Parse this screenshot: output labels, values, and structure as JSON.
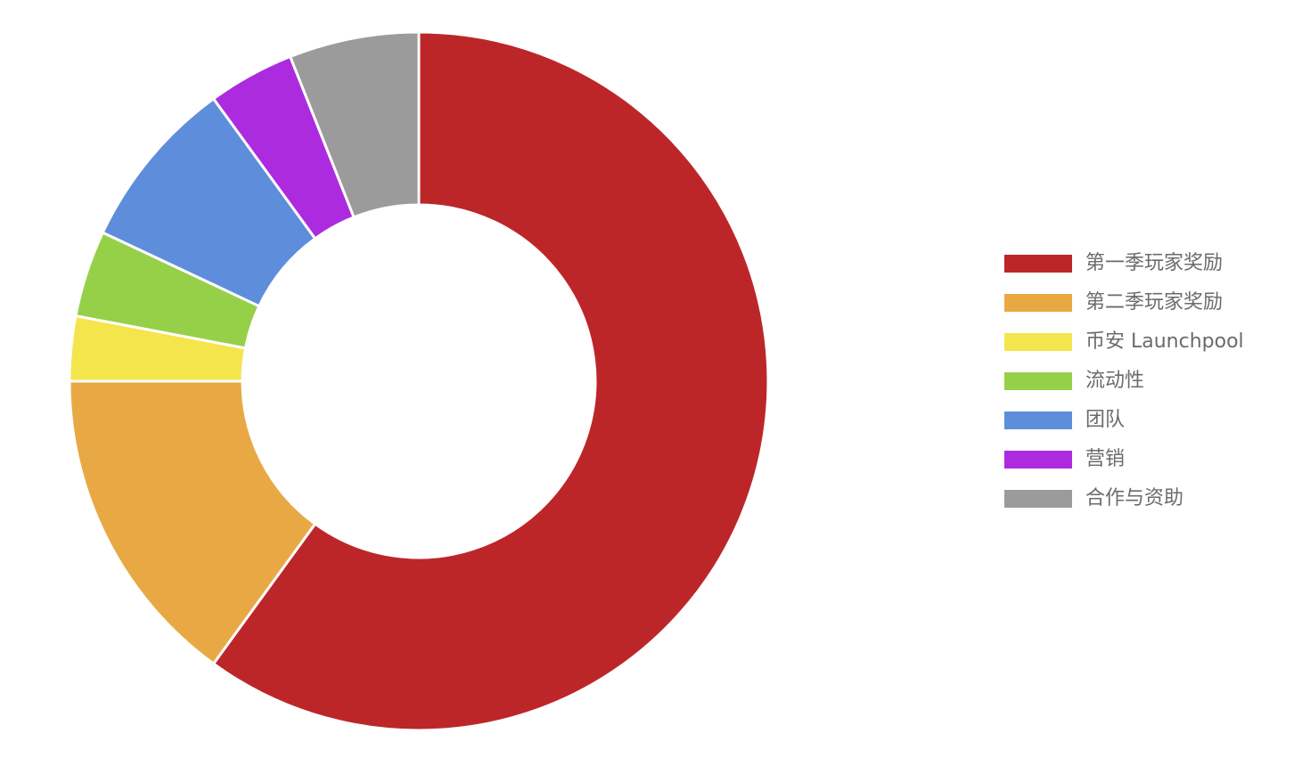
{
  "chart_data": {
    "type": "pie",
    "donut": true,
    "title": "",
    "legend_position": "right",
    "slices": [
      {
        "label": "第一季玩家奖励",
        "value": 60,
        "color": "#bd2629"
      },
      {
        "label": "第二季玩家奖励",
        "value": 15,
        "color": "#e8a944"
      },
      {
        "label": "币安 Launchpool",
        "value": 3,
        "color": "#f4e54d"
      },
      {
        "label": "流动性",
        "value": 4,
        "color": "#96d049"
      },
      {
        "label": "团队",
        "value": 8,
        "color": "#5e8ddb"
      },
      {
        "label": "营销",
        "value": 4,
        "color": "#ad2bdf"
      },
      {
        "label": "合作与资助",
        "value": 6,
        "color": "#9b9b9b"
      }
    ]
  }
}
